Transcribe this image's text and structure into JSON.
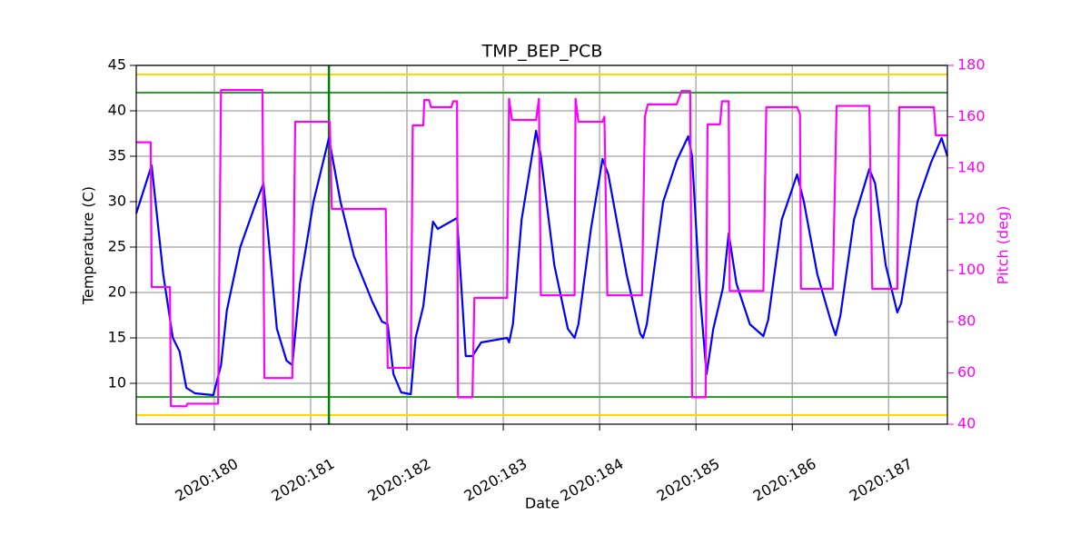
{
  "chart_data": {
    "type": "line",
    "title": "TMP_BEP_PCB",
    "x_label": "Date",
    "y_label": "Temperature (C)",
    "y2_label": "Pitch (deg)",
    "xlim": [
      179.19,
      187.61
    ],
    "xticks": [
      {
        "value": 180,
        "label": "2020:180"
      },
      {
        "value": 181,
        "label": "2020:181"
      },
      {
        "value": 182,
        "label": "2020:182"
      },
      {
        "value": 183,
        "label": "2020:183"
      },
      {
        "value": 184,
        "label": "2020:184"
      },
      {
        "value": 185,
        "label": "2020:185"
      },
      {
        "value": 186,
        "label": "2020:186"
      },
      {
        "value": 187,
        "label": "2020:187"
      }
    ],
    "ylim": [
      5.5,
      45
    ],
    "yticks": [
      10,
      15,
      20,
      25,
      30,
      35,
      40,
      45
    ],
    "y2lim": [
      40,
      180
    ],
    "y2ticks": [
      40,
      60,
      80,
      100,
      120,
      140,
      160,
      180
    ],
    "y2_color": "#ff00ff",
    "grid": true,
    "hlines": [
      {
        "value": 44,
        "color": "#ffd700"
      },
      {
        "value": 6.5,
        "color": "#ffd700"
      },
      {
        "value": 42,
        "color": "#2ca02c"
      },
      {
        "value": 8.5,
        "color": "#2ca02c"
      }
    ],
    "vlines": [
      {
        "value": 181.19,
        "color": "#008000"
      }
    ],
    "series": [
      {
        "color": "#0000ff",
        "x": [
          179.19,
          179.35,
          179.47,
          179.57,
          179.64,
          179.71,
          179.8,
          179.99,
          180.07,
          180.13,
          180.27,
          180.42,
          180.51,
          180.58,
          180.65,
          180.75,
          180.81,
          180.89,
          181.03,
          181.19,
          181.31,
          181.45,
          181.64,
          181.74,
          181.8,
          181.86,
          181.94,
          182.04,
          182.09,
          182.17,
          182.27,
          182.32,
          182.52,
          182.61,
          182.68,
          182.77,
          183.04,
          183.06,
          183.1,
          183.19,
          183.34,
          183.39,
          183.53,
          183.67,
          183.74,
          183.78,
          183.91,
          184.03,
          184.09,
          184.28,
          184.42,
          184.45,
          184.49,
          184.66,
          184.8,
          184.92,
          184.96,
          185.04,
          185.11,
          185.18,
          185.28,
          185.34,
          185.42,
          185.56,
          185.7,
          185.75,
          185.89,
          186.05,
          186.12,
          186.26,
          186.41,
          186.45,
          186.5,
          186.64,
          186.8,
          186.86,
          186.97,
          187.09,
          187.13,
          187.3,
          187.44,
          187.55,
          187.61
        ],
        "values": [
          28.7,
          34,
          22,
          15,
          13.5,
          9.5,
          8.9,
          8.7,
          12,
          18,
          25,
          29.5,
          32,
          24,
          16,
          12.5,
          12,
          21,
          30,
          37,
          30,
          24,
          19,
          16.8,
          16.5,
          11,
          9,
          8.8,
          15,
          18.5,
          27.8,
          27,
          28.2,
          13,
          13,
          14.5,
          15,
          14.5,
          16.5,
          28,
          37.8,
          35,
          23,
          16,
          15,
          16.5,
          27,
          34.7,
          33,
          22,
          15.5,
          15,
          16.5,
          30,
          34.5,
          37.2,
          35,
          20,
          11,
          16,
          20.5,
          26.5,
          21,
          16.5,
          15.2,
          17,
          28,
          33,
          30,
          22,
          16.5,
          15.3,
          17.5,
          28,
          33.6,
          32,
          23,
          17.8,
          18.8,
          30,
          34.3,
          37,
          35
        ]
      },
      {
        "color": "#ff00ff",
        "axis": "y2",
        "x": [
          179.19,
          179.34,
          179.35,
          179.54,
          179.55,
          179.71,
          179.72,
          180.04,
          180.07,
          180.5,
          180.52,
          180.81,
          180.84,
          181.2,
          181.22,
          181.78,
          181.8,
          182.04,
          182.06,
          182.17,
          182.18,
          182.23,
          182.25,
          182.46,
          182.48,
          182.52,
          182.53,
          182.68,
          182.7,
          183.04,
          183.06,
          183.09,
          183.34,
          183.37,
          183.39,
          183.74,
          183.75,
          183.78,
          184.03,
          184.05,
          184.08,
          184.44,
          184.47,
          184.5,
          184.8,
          184.85,
          184.94,
          184.96,
          185.1,
          185.12,
          185.25,
          185.27,
          185.34,
          185.35,
          185.7,
          185.73,
          186.05,
          186.08,
          186.09,
          186.42,
          186.46,
          186.8,
          186.83,
          187.09,
          187.11,
          187.47,
          187.49,
          187.61
        ],
        "values": [
          150,
          150,
          93.5,
          93.5,
          47,
          47,
          48,
          48,
          170.4,
          170.4,
          58,
          58,
          158,
          158,
          124,
          124,
          62,
          62,
          156.6,
          156.6,
          166.5,
          166.5,
          163.7,
          163.7,
          166,
          166,
          50.5,
          50.5,
          89.3,
          89.3,
          167,
          158.7,
          158.7,
          167,
          90.3,
          90.3,
          167,
          158,
          158,
          160,
          90.3,
          90.3,
          160,
          164.8,
          164.8,
          170,
          170,
          50.5,
          50.5,
          157,
          157,
          166,
          166,
          92,
          92,
          163.7,
          163.7,
          161,
          92.8,
          92.8,
          164.2,
          164.2,
          92.8,
          92.8,
          163.7,
          163.7,
          152.7,
          152.7
        ]
      }
    ]
  }
}
